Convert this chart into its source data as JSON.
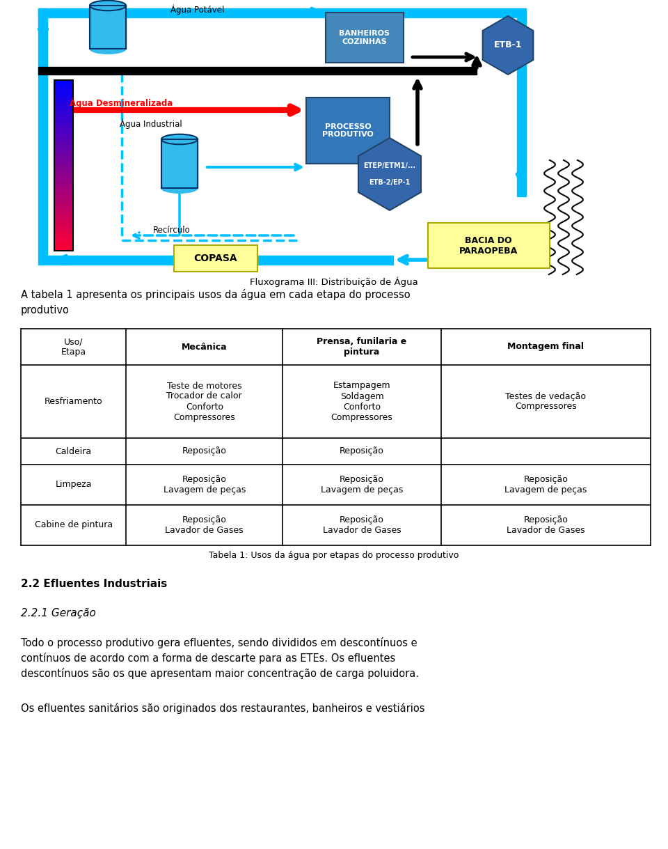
{
  "fig_width": 9.6,
  "fig_height": 12.19,
  "bg_color": "#ffffff",
  "diagram_title": "Fluxograma III: Distribuição de Água",
  "intro_text_line1": "A tabela 1 apresenta os principais usos da água em cada etapa do processo",
  "intro_text_line2": "produtivo",
  "table_headers": [
    "Uso/\nEtapa",
    "Mecânica",
    "Prensa, funilaria e\npintura",
    "Montagem final"
  ],
  "table_rows": [
    [
      "Resfriamento",
      "Teste de motores\nTrocador de calor\nConforto\nCompressores",
      "Estampagem\nSoldagem\nConforto\nCompressores",
      "Testes de vedação\nCompressores"
    ],
    [
      "Caldeira",
      "Reposição",
      "Reposição",
      ""
    ],
    [
      "Limpeza",
      "Reposição\nLavagem de peças",
      "Reposição\nLavagem de peças",
      "Reposição\nLavagem de peças"
    ],
    [
      "Cabine de pintura",
      "Reposição\nLavador de Gases",
      "Reposição\nLavador de Gases",
      "Reposição\nLavador de Gases"
    ]
  ],
  "table_caption": "Tabela 1: Usos da água por etapas do processo produtivo",
  "section_22": "2.2 Efluentes Industriais",
  "section_221": "2.2.1 Geração",
  "para1_lines": [
    "Todo o processo produtivo gera efluentes, sendo divididos em descontínuos e",
    "contínuos de acordo com a forma de descarte para as ETEs. Os efluentes",
    "descontínuos são os que apresentam maior concentração de carga poluidora."
  ],
  "para2": "Os efluentes sanitários são originados dos restaurantes, banheiros e vestiários",
  "cyan": "#00BFFF",
  "red": "#FF0000",
  "black": "#000000",
  "white": "#FFFFFF",
  "box_blue1": "#4488BB",
  "box_blue2": "#3366AA",
  "yellow_bg": "#FFFF99"
}
